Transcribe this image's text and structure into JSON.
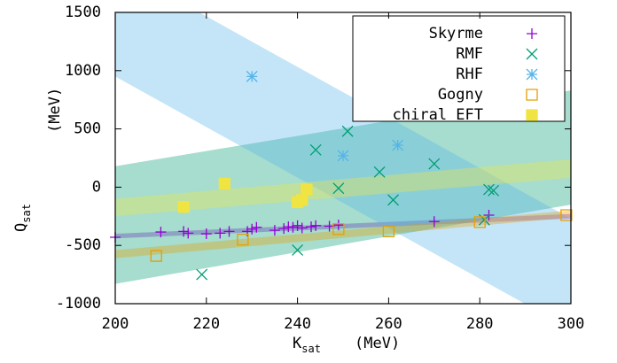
{
  "chart_data": {
    "type": "scatter",
    "xlabel": "K",
    "xlabel_sub": "sat",
    "xlabel_unit": "(MeV)",
    "ylabel": "Q",
    "ylabel_sub": "sat",
    "ylabel_unit": "(MeV)",
    "xlim": [
      200,
      300
    ],
    "xticks": [
      200,
      220,
      240,
      260,
      280,
      300
    ],
    "ylim": [
      -1000,
      1500
    ],
    "yticks": [
      -1000,
      -500,
      0,
      500,
      1000,
      1500
    ],
    "legend": "top-right",
    "series": [
      {
        "name": "Skyrme",
        "color": "#9400d3",
        "marker": "plus",
        "x": [
          200,
          210,
          215,
          216,
          220,
          223,
          225,
          229,
          230,
          231,
          235,
          237,
          238,
          239,
          240,
          241,
          243,
          244,
          247,
          249,
          270,
          282
        ],
        "values": [
          -430,
          -385,
          -380,
          -395,
          -400,
          -395,
          -380,
          -380,
          -360,
          -345,
          -370,
          -355,
          -340,
          -345,
          -330,
          -350,
          -340,
          -330,
          -335,
          -325,
          -295,
          -240
        ],
        "band_x": [
          200,
          300
        ],
        "band_lower": [
          -440,
          -270
        ],
        "band_upper": [
          -400,
          -230
        ]
      },
      {
        "name": "RMF",
        "color": "#009e73",
        "marker": "cross",
        "x": [
          219,
          240,
          244,
          249,
          251,
          258,
          261,
          270,
          281,
          282,
          283
        ],
        "values": [
          -750,
          -540,
          320,
          -10,
          480,
          130,
          -110,
          200,
          -280,
          -20,
          -30
        ],
        "band_x": [
          200,
          300
        ],
        "band_lower": [
          -830,
          -150
        ],
        "band_upper": [
          180,
          830
        ]
      },
      {
        "name": "RHF",
        "color": "#56b4e9",
        "marker": "star",
        "x": [
          230,
          250,
          262
        ],
        "values": [
          950,
          270,
          360
        ],
        "band_x": [
          200,
          300
        ],
        "band_lower": [
          950,
          -1220
        ],
        "band_upper": [
          1900,
          -270
        ]
      },
      {
        "name": "Gogny",
        "color": "#e69f00",
        "marker": "square-open",
        "x": [
          209,
          228,
          249,
          260,
          280,
          299
        ],
        "values": [
          -590,
          -450,
          -360,
          -380,
          -300,
          -240
        ],
        "band_x": [
          200,
          300
        ],
        "band_lower": [
          -610,
          -260
        ],
        "band_upper": [
          -540,
          -200
        ]
      },
      {
        "name": "chiral EFT",
        "color": "#f0e442",
        "marker": "square-filled",
        "x": [
          215,
          224,
          240,
          241,
          242
        ],
        "values": [
          -170,
          30,
          -130,
          -110,
          -20
        ],
        "band_x": [
          200,
          300
        ],
        "band_lower": [
          -250,
          80
        ],
        "band_upper": [
          -100,
          240
        ]
      }
    ]
  }
}
